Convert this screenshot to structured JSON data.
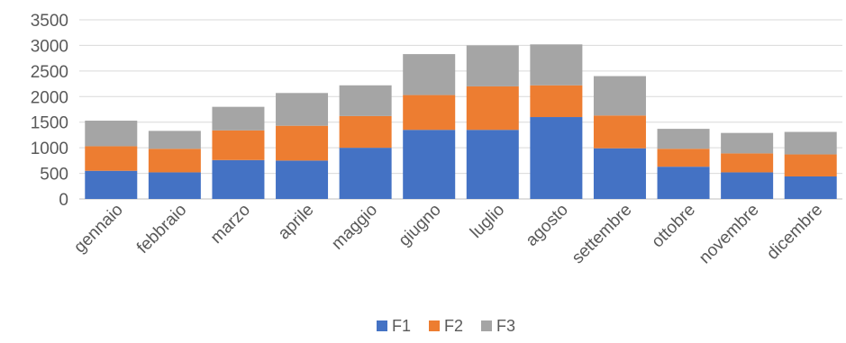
{
  "chart_data": {
    "type": "bar",
    "stacked": true,
    "title": "",
    "xlabel": "",
    "ylabel": "",
    "ylim": [
      0,
      3500
    ],
    "yticks": [
      0,
      500,
      1000,
      1500,
      2000,
      2500,
      3000,
      3500
    ],
    "grid": true,
    "legend_position": "bottom",
    "categories": [
      "gennaio",
      "febbraio",
      "marzo",
      "aprile",
      "maggio",
      "giugno",
      "luglio",
      "agosto",
      "settembre",
      "ottobre",
      "novembre",
      "dicembre"
    ],
    "series": [
      {
        "name": "F1",
        "color": "#4472C4",
        "values": [
          550,
          520,
          760,
          750,
          1000,
          1350,
          1350,
          1600,
          990,
          630,
          520,
          440
        ]
      },
      {
        "name": "F2",
        "color": "#ED7D31",
        "values": [
          480,
          460,
          580,
          680,
          620,
          680,
          850,
          620,
          640,
          350,
          370,
          430
        ]
      },
      {
        "name": "F3",
        "color": "#A5A5A5",
        "values": [
          500,
          350,
          460,
          640,
          600,
          800,
          800,
          800,
          770,
          390,
          400,
          440
        ]
      }
    ]
  }
}
